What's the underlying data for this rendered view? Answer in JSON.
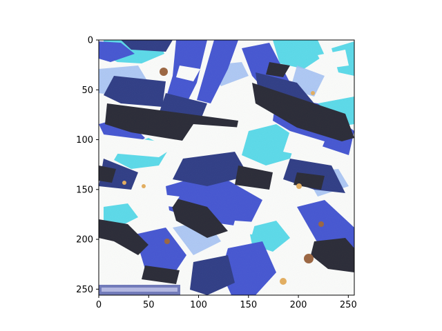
{
  "chart_data": {
    "type": "heatmap",
    "title": "",
    "xlabel": "",
    "ylabel": "",
    "image_size": [
      256,
      256
    ],
    "xlim": [
      0,
      256
    ],
    "ylim": [
      256,
      0
    ],
    "x_ticks": [
      0,
      50,
      100,
      150,
      200,
      250
    ],
    "y_ticks": [
      0,
      50,
      100,
      150,
      200,
      250
    ],
    "y_axis_inverted": true,
    "grid": false,
    "content": "abstract texture of diagonal dark-navy and royal-blue streaks with black ridges, cyan patches and white highlights, small brown/orange specks",
    "colors": {
      "white": "#fbfcf8",
      "navy": "#0a1a6e",
      "royal_blue": "#2438c8",
      "cyan": "#3ed4e4",
      "light_blue": "#8fb4f0",
      "black": "#030410",
      "brown": "#8a4a1c",
      "orange": "#e0a040",
      "corner_strip": "#3a46a0"
    }
  },
  "axes": {
    "x_tick_labels": [
      "0",
      "50",
      "100",
      "150",
      "200",
      "250"
    ],
    "y_tick_labels": [
      "0",
      "50",
      "100",
      "150",
      "200",
      "250"
    ]
  }
}
